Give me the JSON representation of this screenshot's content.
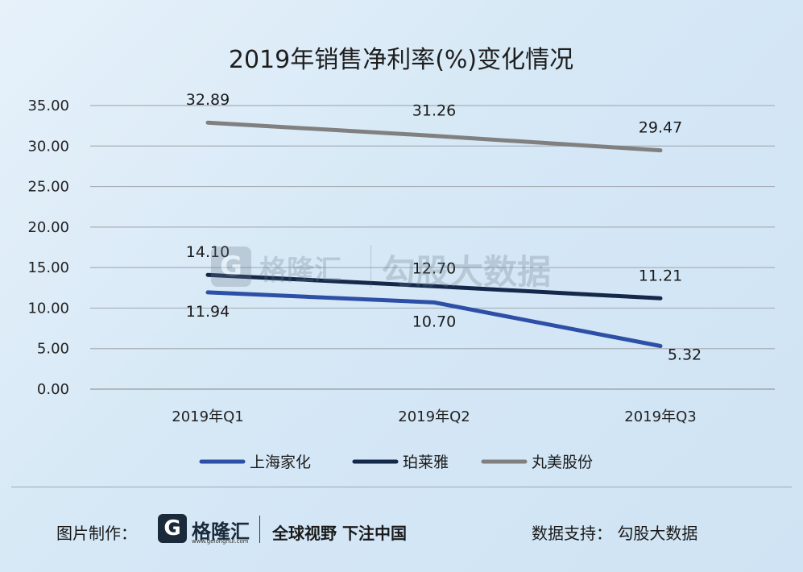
{
  "chart_data": {
    "type": "line",
    "title": "2019年销售净利率(%)变化情况",
    "categories": [
      "2019年Q1",
      "2019年Q2",
      "2019年Q3"
    ],
    "ylim": [
      0,
      35
    ],
    "yticks": [
      "0.00",
      "5.00",
      "10.00",
      "15.00",
      "20.00",
      "25.00",
      "30.00",
      "35.00"
    ],
    "grid": true,
    "legend_position": "bottom",
    "series": [
      {
        "name": "上海家化",
        "values": [
          11.94,
          10.7,
          5.32
        ],
        "labels": [
          "11.94",
          "10.70",
          "5.32"
        ],
        "color": "#2e4fa6"
      },
      {
        "name": "珀莱雅",
        "values": [
          14.1,
          12.7,
          11.21
        ],
        "labels": [
          "14.10",
          "12.70",
          "11.21"
        ],
        "color": "#14284a"
      },
      {
        "name": "丸美股份",
        "values": [
          32.89,
          31.26,
          29.47
        ],
        "labels": [
          "32.89",
          "31.26",
          "29.47"
        ],
        "color": "#808080"
      }
    ]
  },
  "watermark": {
    "logo_letter": "G",
    "brand": "格隆汇",
    "source": "勾股大数据"
  },
  "footer": {
    "credit_label": "图片制作：",
    "logo_letter": "G",
    "brand": "格隆汇",
    "url": "www.gelonghui.com",
    "slogan": "全球视野 下注中国",
    "source": "数据支持：  勾股大数据"
  }
}
